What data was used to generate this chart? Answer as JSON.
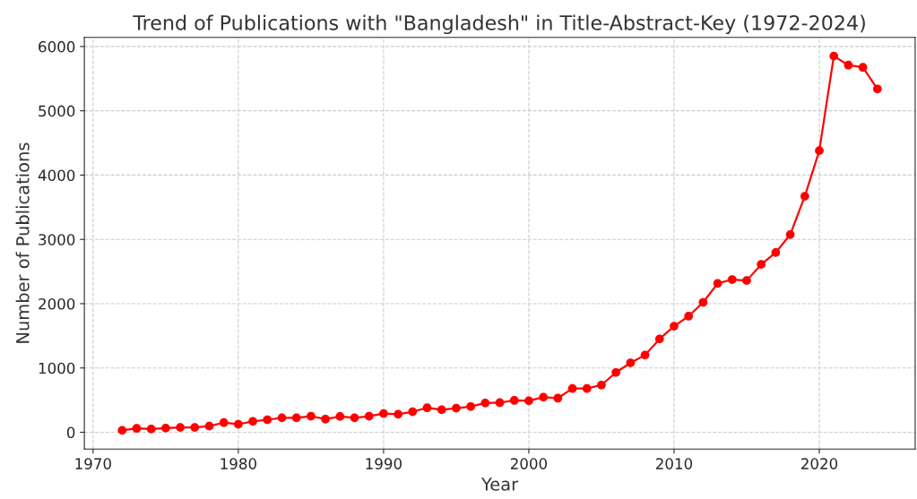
{
  "chart_data": {
    "type": "line",
    "title": "Trend of Publications with \"Bangladesh\" in Title-Abstract-Key (1972-2024)",
    "xlabel": "Year",
    "ylabel": "Number of Publications",
    "x": [
      1972,
      1973,
      1974,
      1975,
      1976,
      1977,
      1978,
      1979,
      1980,
      1981,
      1982,
      1983,
      1984,
      1985,
      1986,
      1987,
      1988,
      1989,
      1990,
      1991,
      1992,
      1993,
      1994,
      1995,
      1996,
      1997,
      1998,
      1999,
      2000,
      2001,
      2002,
      2003,
      2004,
      2005,
      2006,
      2007,
      2008,
      2009,
      2010,
      2011,
      2012,
      2013,
      2014,
      2015,
      2016,
      2017,
      2018,
      2019,
      2020,
      2021,
      2022,
      2023,
      2024
    ],
    "series": [
      {
        "color": "#ff0000",
        "values": [
          30,
          60,
          50,
          65,
          75,
          75,
          95,
          150,
          125,
          170,
          195,
          225,
          225,
          250,
          205,
          245,
          225,
          250,
          290,
          280,
          320,
          380,
          350,
          375,
          400,
          455,
          460,
          495,
          490,
          545,
          530,
          680,
          680,
          735,
          930,
          1080,
          1200,
          1450,
          1650,
          1805,
          2020,
          2315,
          2375,
          2360,
          2610,
          2795,
          3075,
          3670,
          4380,
          5850,
          5710,
          5675,
          5340
        ]
      }
    ],
    "xlim": [
      1969.4,
      2026.6
    ],
    "ylim": [
      -262,
      6141
    ],
    "xticks": [
      1970,
      1980,
      1990,
      2000,
      2010,
      2020
    ],
    "yticks": [
      0,
      1000,
      2000,
      3000,
      4000,
      5000,
      6000
    ],
    "grid": true,
    "marker": "circle",
    "line_style": "solid"
  }
}
